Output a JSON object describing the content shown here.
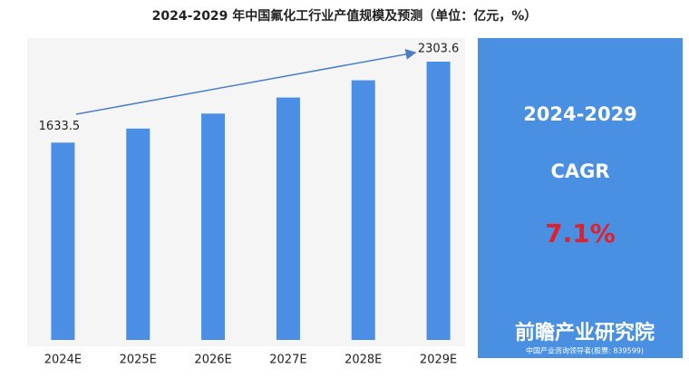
{
  "chart_data": {
    "type": "bar",
    "title": "2024-2029 年中国氟化工行业产值规模及预测（单位：亿元，%）",
    "categories": [
      "2024E",
      "2025E",
      "2026E",
      "2027E",
      "2028E",
      "2029E"
    ],
    "values": [
      1633.5,
      1749.5,
      1873.7,
      2006.7,
      2149.2,
      2303.6
    ],
    "value_labels": [
      "1633.5",
      null,
      null,
      null,
      null,
      "2303.6"
    ],
    "color": "#4a8ee6",
    "panel": {
      "period": "2024-2029",
      "metric": "CAGR",
      "value": "7.1%",
      "brand": "前瞻产业研究院",
      "brand_sub": "中国产业咨询领导者(股票: 839599)"
    }
  }
}
